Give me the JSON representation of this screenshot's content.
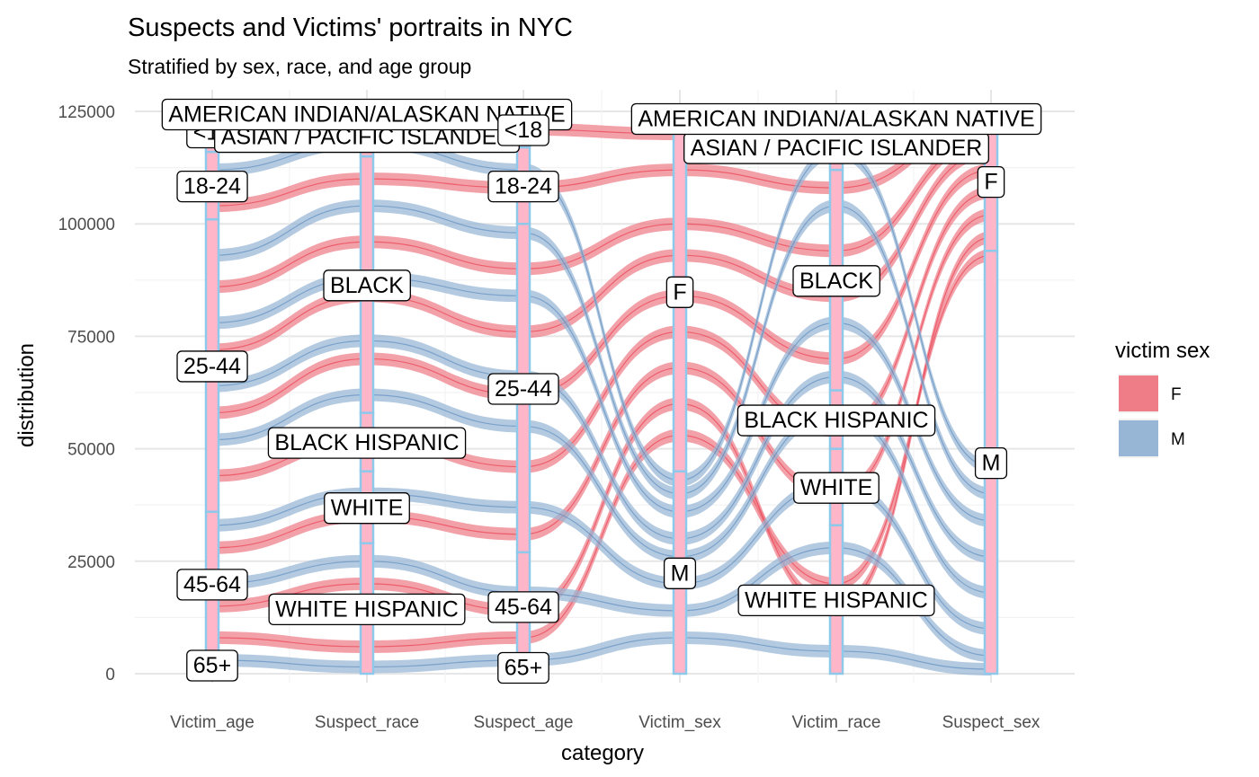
{
  "chart_data": {
    "type": "alluvial",
    "title": "Suspects and Victims' portraits in NYC",
    "subtitle": "Stratified by sex, race, and age group",
    "xlabel": "category",
    "ylabel": "distribution",
    "ylim": [
      0,
      125000
    ],
    "y_ticks": [
      0,
      25000,
      50000,
      75000,
      100000,
      125000
    ],
    "y_tick_labels": [
      "0",
      "25000",
      "50000",
      "75000",
      "100000",
      "125000"
    ],
    "categories": [
      "Victim_age",
      "Suspect_race",
      "Suspect_age",
      "Victim_sex",
      "Victim_race",
      "Suspect_sex"
    ],
    "grid": true,
    "legend": {
      "title": "victim sex",
      "placement": "right",
      "items": [
        {
          "name": "F",
          "color": "#ee7d88"
        },
        {
          "name": "M",
          "color": "#97b6d6"
        }
      ]
    },
    "colors": {
      "F": "#ee7d88",
      "M": "#97b6d6",
      "F_line": "#e8283c",
      "M_line": "#4a7fb8",
      "stratum_fill": "#ffb6c8",
      "stratum_border": "#8ec9ec"
    },
    "strata": [
      {
        "axis": "Victim_age",
        "items": [
          {
            "label": "65+",
            "from": 0,
            "to": 4000
          },
          {
            "label": "45-64",
            "from": 4000,
            "to": 36000
          },
          {
            "label": "25-44",
            "from": 36000,
            "to": 101000
          },
          {
            "label": "18-24",
            "from": 101000,
            "to": 116000
          },
          {
            "label": "<18",
            "from": 116000,
            "to": 125000
          }
        ]
      },
      {
        "axis": "Suspect_race",
        "items": [
          {
            "label": "WHITE HISPANIC",
            "from": 0,
            "to": 29000
          },
          {
            "label": "WHITE",
            "from": 29000,
            "to": 45000
          },
          {
            "label": "BLACK HISPANIC",
            "from": 45000,
            "to": 58000
          },
          {
            "label": "BLACK",
            "from": 58000,
            "to": 115000
          },
          {
            "label": "ASIAN / PACIFIC ISLANDER",
            "from": 115000,
            "to": 124000
          },
          {
            "label": "AMERICAN INDIAN/ALASKAN NATIVE",
            "from": 124000,
            "to": 125000
          }
        ]
      },
      {
        "axis": "Suspect_age",
        "items": [
          {
            "label": "65+",
            "from": 0,
            "to": 3000
          },
          {
            "label": "45-64",
            "from": 3000,
            "to": 27000
          },
          {
            "label": "25-44",
            "from": 27000,
            "to": 100000
          },
          {
            "label": "18-24",
            "from": 100000,
            "to": 117000
          },
          {
            "label": "<18",
            "from": 117000,
            "to": 125000
          }
        ]
      },
      {
        "axis": "Victim_sex",
        "items": [
          {
            "label": "M",
            "from": 0,
            "to": 45000
          },
          {
            "label": "F",
            "from": 45000,
            "to": 125000
          }
        ]
      },
      {
        "axis": "Victim_race",
        "items": [
          {
            "label": "WHITE HISPANIC",
            "from": 0,
            "to": 33000
          },
          {
            "label": "WHITE",
            "from": 33000,
            "to": 50000
          },
          {
            "label": "BLACK HISPANIC",
            "from": 50000,
            "to": 63000
          },
          {
            "label": "BLACK",
            "from": 63000,
            "to": 112000
          },
          {
            "label": "ASIAN / PACIFIC ISLANDER",
            "from": 112000,
            "to": 122000
          },
          {
            "label": "AMERICAN INDIAN/ALASKAN NATIVE",
            "from": 122000,
            "to": 125000
          }
        ]
      },
      {
        "axis": "Suspect_sex",
        "items": [
          {
            "label": "M",
            "from": 0,
            "to": 94000
          },
          {
            "label": "F",
            "from": 94000,
            "to": 125000
          }
        ]
      }
    ],
    "flows": [
      {
        "victim_sex": "F",
        "values": [
          8000,
          6000,
          8000,
          53000,
          20000,
          93000
        ]
      },
      {
        "victim_sex": "M",
        "values": [
          3000,
          1500,
          3000,
          8000,
          5000,
          1000
        ]
      },
      {
        "victim_sex": "F",
        "values": [
          15000,
          20000,
          14000,
          60000,
          15000,
          97000
        ]
      },
      {
        "victim_sex": "M",
        "values": [
          20000,
          25000,
          18000,
          14000,
          28000,
          4000
        ]
      },
      {
        "victim_sex": "F",
        "values": [
          28000,
          35000,
          31000,
          68000,
          40000,
          102000
        ]
      },
      {
        "victim_sex": "M",
        "values": [
          33000,
          40000,
          37000,
          20000,
          42000,
          10000
        ]
      },
      {
        "victim_sex": "F",
        "values": [
          44000,
          52000,
          46000,
          76000,
          54000,
          107000
        ]
      },
      {
        "victim_sex": "M",
        "values": [
          52000,
          62000,
          55000,
          26000,
          58000,
          18000
        ]
      },
      {
        "victim_sex": "F",
        "values": [
          58000,
          70000,
          62000,
          84000,
          70000,
          112000
        ]
      },
      {
        "victim_sex": "M",
        "values": [
          64000,
          74000,
          66000,
          30000,
          66000,
          26000
        ]
      },
      {
        "victim_sex": "F",
        "values": [
          72000,
          84000,
          76000,
          93000,
          84000,
          116000
        ]
      },
      {
        "victim_sex": "M",
        "values": [
          78000,
          88000,
          84000,
          36000,
          78000,
          34000
        ]
      },
      {
        "victim_sex": "F",
        "values": [
          86000,
          96000,
          90000,
          100000,
          94000,
          119000
        ]
      },
      {
        "victim_sex": "M",
        "values": [
          93000,
          104000,
          98000,
          40000,
          104000,
          40000
        ]
      },
      {
        "victim_sex": "F",
        "values": [
          104000,
          110000,
          108000,
          112000,
          108000,
          122000
        ]
      },
      {
        "victim_sex": "M",
        "values": [
          112000,
          118000,
          112000,
          43000,
          116000,
          46000
        ]
      },
      {
        "victim_sex": "F",
        "values": [
          120000,
          122000,
          121000,
          120000,
          121000,
          124000
        ]
      }
    ]
  }
}
